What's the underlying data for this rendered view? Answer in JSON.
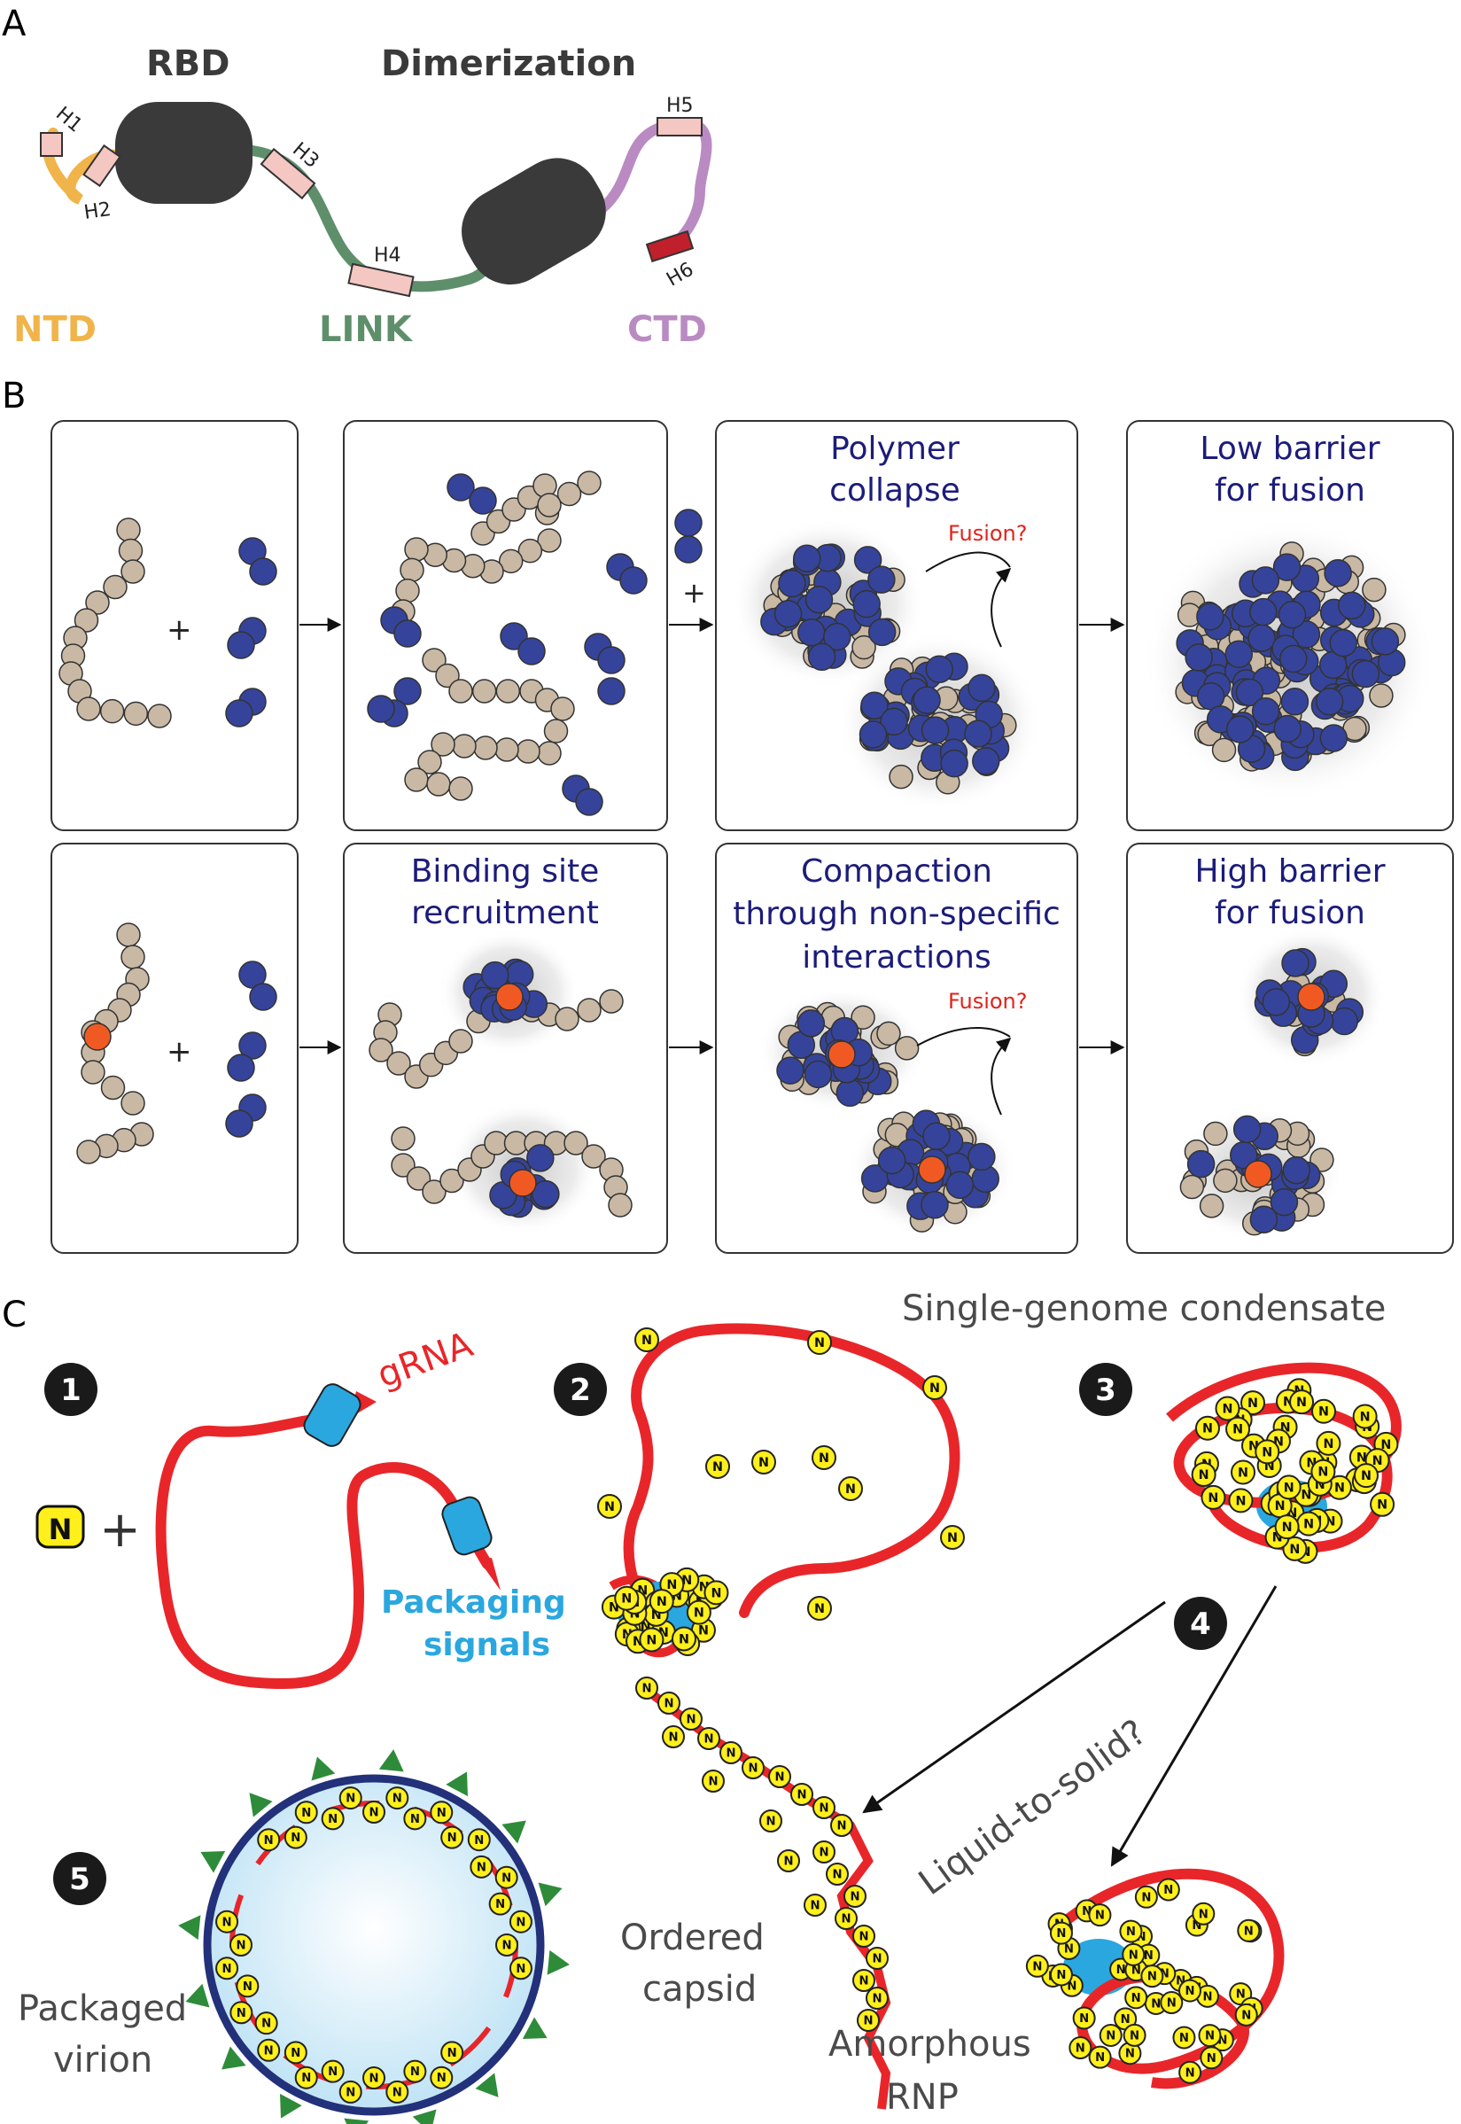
{
  "panels": {
    "a": "A",
    "b": "B",
    "c": "C"
  },
  "panel_a": {
    "rbd": "RBD",
    "dimerization": "Dimerization",
    "ntd": "NTD",
    "link": "LINK",
    "ctd": "CTD",
    "helices": [
      "H1",
      "H2",
      "H3",
      "H4",
      "H5",
      "H6"
    ],
    "colors": {
      "ntd": "#f0b44a",
      "link": "#5e8f6a",
      "ctd": "#b98bc2",
      "domain": "#3a3a3a"
    }
  },
  "panel_b": {
    "plus": "+",
    "row1": {
      "box3_title": [
        "Polymer",
        "collapse"
      ],
      "box4_title": [
        "Low barrier",
        "for fusion"
      ],
      "fusion": "Fusion?"
    },
    "row2": {
      "box2_title": [
        "Binding site",
        "recruitment"
      ],
      "box3_title": [
        "Compaction",
        "through non-specific",
        "interactions"
      ],
      "box4_title": [
        "High barrier",
        "for fusion"
      ],
      "fusion": "Fusion?"
    },
    "colors": {
      "rna_bead": "#c9b9a4",
      "protein": "#35449a",
      "site": "#f05a22"
    }
  },
  "panel_c": {
    "steps": [
      "1",
      "2",
      "3",
      "4",
      "5"
    ],
    "n_label": "N",
    "plus": "+",
    "grna": "gRNA",
    "packaging": [
      "Packaging",
      "signals"
    ],
    "single_genome": "Single-genome condensate",
    "liquid_solid": "Liquid-to-solid?",
    "ordered": [
      "Ordered",
      "capsid"
    ],
    "amorphous": [
      "Amorphous",
      "RNP"
    ],
    "packaged": [
      "Packaged",
      "virion"
    ],
    "colors": {
      "rna": "#e8262a",
      "n_protein": "#ffef1a",
      "signal": "#2aa7df",
      "spike": "#2e8b3a",
      "membrane": "#23307a"
    }
  }
}
